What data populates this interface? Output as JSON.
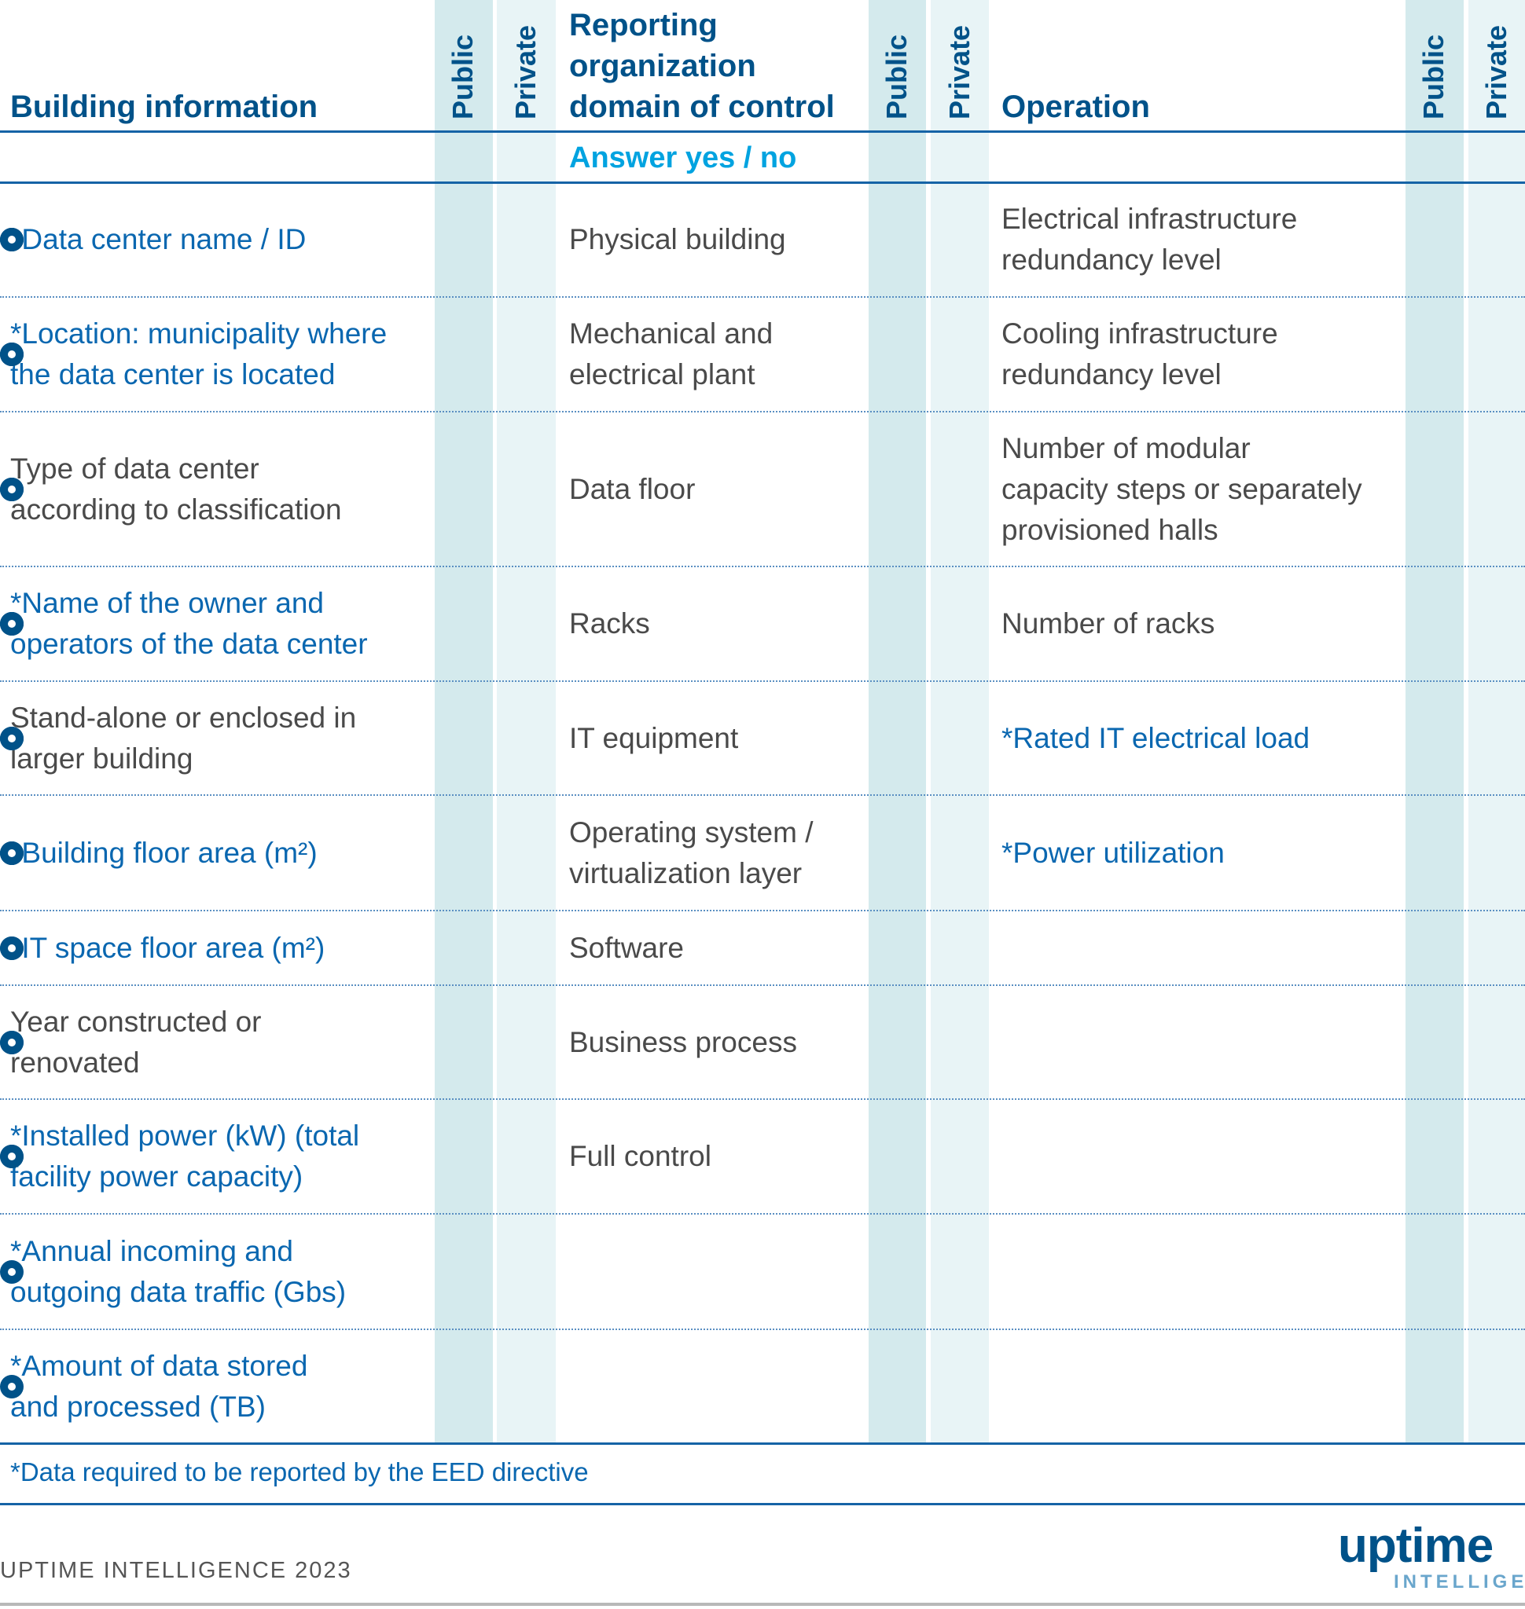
{
  "headers": {
    "col1": "Building information",
    "col2": "Reporting\norganization\ndomain of control",
    "col3": "Operation",
    "public": "Public",
    "private": "Private",
    "answer": "Answer yes / no"
  },
  "colors": {
    "dark_blue": "#005289",
    "required_blue": "#0a67b0",
    "answer_cyan": "#00a3e0",
    "public_bg": "#d4eaed",
    "private_bg": "#e8f4f6"
  },
  "icons": {
    "marker": "filled-circle-ring-icon"
  },
  "rows": [
    {
      "c1": "*Data center name / ID",
      "c1v": "public",
      "c2": "Physical building",
      "c2v": "private",
      "c3": "Electrical infrastructure\nredundancy level",
      "c3v": "private"
    },
    {
      "c1": "*Location: municipality where\nthe data center is located",
      "c1v": "public",
      "c2": "Mechanical and\nelectrical plant",
      "c2v": "private",
      "c3": "Cooling infrastructure\nredundancy level",
      "c3v": "private"
    },
    {
      "c1": "Type of data center\naccording to classification",
      "c1v": "public",
      "c2": "Data floor",
      "c2v": "private",
      "c3": "Number of modular\ncapacity steps or separately\nprovisioned halls",
      "c3v": "private"
    },
    {
      "c1": "*Name of the owner and\noperators of the data center",
      "c1v": "public",
      "c2": "Racks",
      "c2v": "private",
      "c3": "Number of racks",
      "c3v": "private"
    },
    {
      "c1": "Stand-alone or enclosed in\nlarger building",
      "c1v": "private",
      "c2": "IT equipment",
      "c2v": "private",
      "c3": "*Rated IT electrical load",
      "c3v": "private"
    },
    {
      "c1": "*Building floor area (m²)",
      "c1v": "public",
      "c2": "Operating system /\nvirtualization layer",
      "c2v": "private",
      "c3": "*Power utilization",
      "c3v": "public"
    },
    {
      "c1": "*IT space floor area (m²)",
      "c1v": "public",
      "c2": "Software",
      "c2v": "private",
      "c3": "",
      "c3v": ""
    },
    {
      "c1": "Year constructed or\nrenovated",
      "c1v": "public",
      "c2": "Business process",
      "c2v": "private",
      "c3": "",
      "c3v": ""
    },
    {
      "c1": "*Installed power (kW) (total\nfacility power capacity)",
      "c1v": "public",
      "c2": "Full control",
      "c2v": "private",
      "c3": "",
      "c3v": ""
    },
    {
      "c1": "*Annual incoming and\noutgoing data traffic (Gbs)",
      "c1v": "public",
      "c2": "",
      "c2v": "",
      "c3": "",
      "c3v": ""
    },
    {
      "c1": "*Amount of data stored\nand processed (TB)",
      "c1v": "public",
      "c2": "",
      "c2v": "",
      "c3": "",
      "c3v": ""
    }
  ],
  "footnote": "*Data required to be reported by the EED directive",
  "credit": "UPTIME INTELLIGENCE 2023",
  "logo": {
    "word": "uptime",
    "sub": "INTELLIGENCE"
  }
}
